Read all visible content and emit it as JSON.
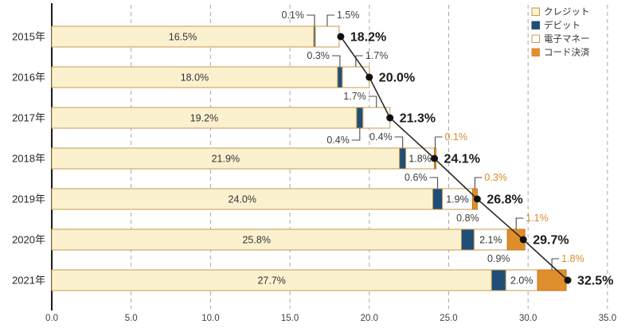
{
  "chart_data": {
    "type": "bar",
    "orientation": "horizontal-stacked-with-line",
    "categories": [
      "2015年",
      "2016年",
      "2017年",
      "2018年",
      "2019年",
      "2020年",
      "2021年"
    ],
    "series": [
      {
        "name": "クレジット",
        "color": "#FBF1CF",
        "border": "#C79A4E",
        "values": [
          16.5,
          18.0,
          19.2,
          21.9,
          24.0,
          25.8,
          27.7
        ]
      },
      {
        "name": "デビット",
        "color": "#1F4E79",
        "border": "#C79A4E",
        "values": [
          0.1,
          0.3,
          0.4,
          0.4,
          0.6,
          0.8,
          0.9
        ]
      },
      {
        "name": "電子マネー",
        "color": "#FFFFFF",
        "border": "#C79A4E",
        "values": [
          1.5,
          1.7,
          1.7,
          1.8,
          1.9,
          2.1,
          2.0
        ]
      },
      {
        "name": "コード決済",
        "color": "#E08E2D",
        "border": "#C07719",
        "values": [
          null,
          null,
          null,
          0.1,
          0.3,
          1.1,
          1.8
        ]
      }
    ],
    "totals": [
      18.2,
      20.0,
      21.3,
      24.1,
      26.8,
      29.7,
      32.5
    ],
    "xlabel": "",
    "ylabel": "",
    "x_axis": {
      "min": 0,
      "max": 35,
      "ticks": [
        "0.0",
        "5.0",
        "10.0",
        "15.0",
        "20.0",
        "25.0",
        "30.0",
        "35.0"
      ],
      "grid": "dashed"
    },
    "legend": {
      "position": "top-right",
      "items": [
        {
          "label": "クレジット",
          "color": "#FBF1CF",
          "border": "#C79A4E"
        },
        {
          "label": "デビット",
          "color": "#1F4E79",
          "border": "#1F4E79"
        },
        {
          "label": "電子マネー",
          "color": "#FFFFFF",
          "border": "#C79A4E"
        },
        {
          "label": "コード決済",
          "color": "#E08E2D",
          "border": "#E08E2D"
        }
      ]
    },
    "colors": {
      "total_label": "#1a1a1a",
      "callout_text": "#404040",
      "code_callout_text": "#D98C2B",
      "connector": "#4a4a4a",
      "trend_line": "#2b2b2b",
      "gridline": "#A8A8A8",
      "axis": "#000000"
    }
  }
}
